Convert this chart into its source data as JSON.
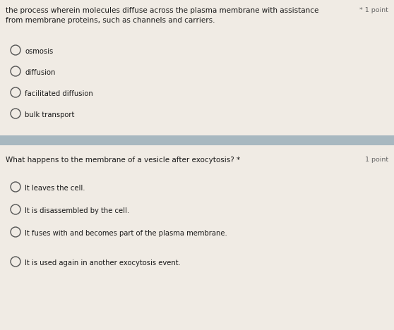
{
  "bg_color": "#f0ebe4",
  "section_divider_color": "#a8b8c0",
  "text_color": "#1a1a1a",
  "point_color": "#666666",
  "q1_line1": "the process wherein molecules diffuse across the plasma membrane with assistance",
  "q1_line2": "from membrane proteins, such as channels and carriers.",
  "q1_star_point": "* 1 point",
  "q1_options": [
    "osmosis",
    "diffusion",
    "facilitated diffusion",
    "bulk transport"
  ],
  "q2_text": "What happens to the membrane of a vesicle after exocytosis? *",
  "q2_point": "1 point",
  "q2_options": [
    "It leaves the cell.",
    "It is disassembled by the cell.",
    "It fuses with and becomes part of the plasma membrane.",
    "It is used again in another exocytosis event."
  ],
  "fig_width": 5.58,
  "fig_height": 4.68,
  "dpi": 100
}
